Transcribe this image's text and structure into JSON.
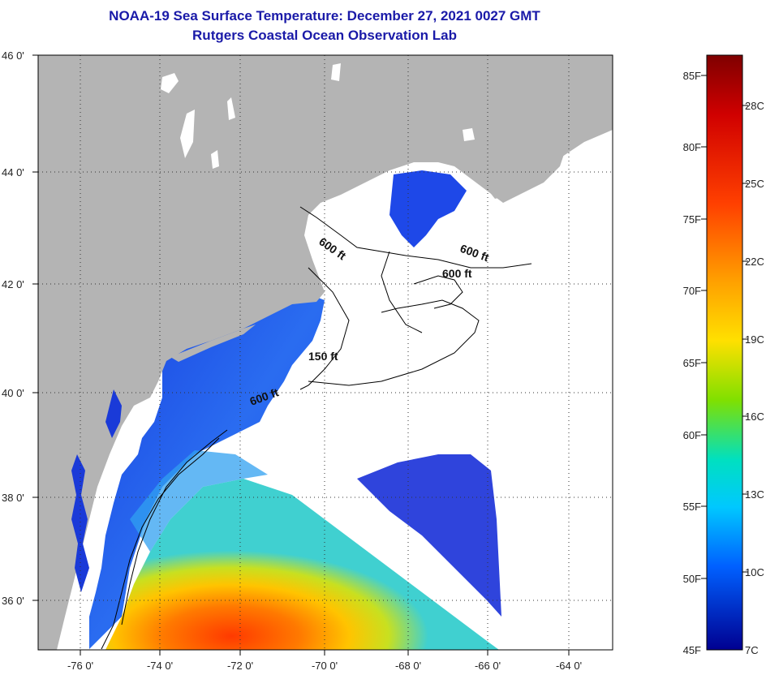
{
  "header": {
    "title": "NOAA-19 Sea Surface Temperature:  December 27, 2021 0027 GMT",
    "subtitle": "Rutgers Coastal Ocean Observation Lab"
  },
  "axes": {
    "lat_labels": [
      "46 0'",
      "44 0'",
      "42 0'",
      "40 0'",
      "38 0'",
      "36 0'"
    ],
    "lon_labels": [
      "-76 0'",
      "-74 0'",
      "-72 0'",
      "-70 0'",
      "-68 0'",
      "-66 0'",
      "-64 0'"
    ]
  },
  "contours": {
    "c600a": "600 ft",
    "c600b": "600 ft",
    "c600c": "600 ft",
    "c150": "150 ft",
    "c600d": "600 ft"
  },
  "colorbar": {
    "fahrenheit": [
      "85F",
      "80F",
      "75F",
      "70F",
      "65F",
      "60F",
      "55F",
      "50F",
      "45F"
    ],
    "celsius": [
      "28C",
      "25C",
      "22C",
      "19C",
      "16C",
      "13C",
      "10C",
      "7C"
    ]
  },
  "colors": {
    "land": "#b4b4b4",
    "no_data": "#ffffff",
    "title_color": "#1a1aa8"
  }
}
